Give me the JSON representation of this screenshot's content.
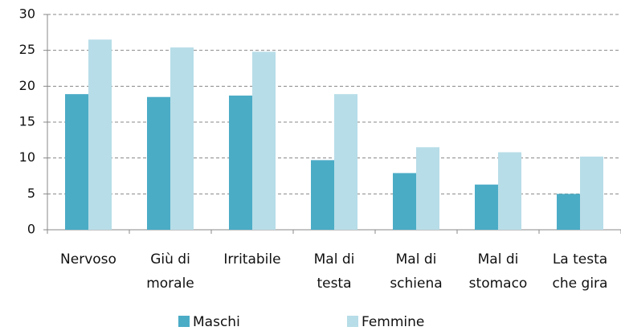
{
  "chart_data": {
    "type": "bar",
    "categories": [
      [
        "Nervoso"
      ],
      [
        "Giù di",
        "morale"
      ],
      [
        "Irritabile"
      ],
      [
        "Mal di",
        "testa"
      ],
      [
        "Mal di",
        "schiena"
      ],
      [
        "Mal di",
        "stomaco"
      ],
      [
        "La testa",
        "che gira"
      ]
    ],
    "series": [
      {
        "name": "Maschi",
        "color": "#4bacc6",
        "values": [
          18.9,
          18.5,
          18.7,
          9.7,
          7.9,
          6.3,
          5.0
        ]
      },
      {
        "name": "Femmine",
        "color": "#b7dde8",
        "values": [
          26.5,
          25.4,
          24.8,
          18.9,
          11.5,
          10.8,
          10.2
        ]
      }
    ],
    "ylim": [
      0,
      30
    ],
    "yticks": [
      0,
      5,
      10,
      15,
      20,
      25,
      30
    ],
    "grid": true,
    "legend": "bottom"
  }
}
